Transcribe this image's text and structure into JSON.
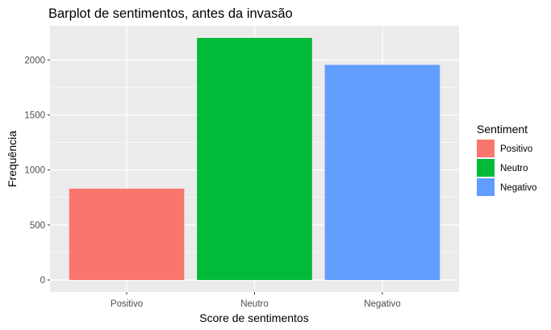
{
  "chart_data": {
    "type": "bar",
    "title": "Barplot de sentimentos, antes da invasão",
    "xlabel": "Score de sentimentos",
    "ylabel": "Frequência",
    "categories": [
      "Positivo",
      "Neutro",
      "Negativo"
    ],
    "values": [
      830,
      2200,
      1955
    ],
    "colors": [
      "#F8766D",
      "#00BA38",
      "#619CFF"
    ],
    "ylim": [
      -110,
      2310
    ],
    "yticks": [
      0,
      500,
      1000,
      1500,
      2000
    ],
    "grid": true,
    "legend": {
      "title": "Sentiment",
      "position": "right",
      "entries": [
        "Positivo",
        "Neutro",
        "Negativo"
      ]
    }
  }
}
